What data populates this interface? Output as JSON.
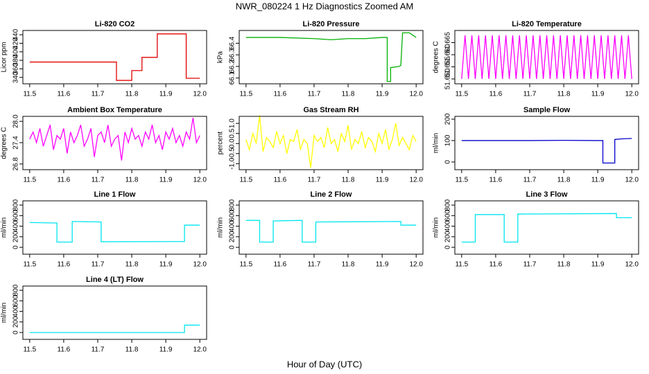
{
  "title": "NWR_080224  1 Hz Diagnostics Zoomed AM",
  "xlabel": "Hour of Day (UTC)",
  "chart_data": [
    {
      "type": "line",
      "title": "Li-820 CO2",
      "ylabel": "Licor ppm",
      "color": "#e00000",
      "x": [
        11.5,
        11.755,
        11.755,
        11.8,
        11.8,
        11.83,
        11.83,
        11.875,
        11.875,
        11.96,
        11.96,
        12.0
      ],
      "values": [
        376,
        376,
        333,
        333,
        356,
        356,
        387,
        387,
        442,
        442,
        338,
        338
      ],
      "xlim": [
        11.48,
        12.02
      ],
      "xticks": [
        11.5,
        11.6,
        11.7,
        11.8,
        11.9,
        {
          "value": 12,
          "label": "12.0"
        }
      ],
      "ylim": [
        325,
        450
      ],
      "yticks": [
        340,
        360,
        380,
        400,
        420,
        440
      ]
    },
    {
      "type": "line",
      "title": "Li-820 Pressure",
      "ylabel": "kPa",
      "color": "#00b000",
      "x": [
        11.5,
        11.6,
        11.7,
        11.75,
        11.8,
        11.85,
        11.9,
        11.915,
        11.915,
        11.925,
        11.925,
        11.95,
        11.955,
        11.96,
        11.98,
        12.0
      ],
      "values": [
        66.45,
        66.45,
        66.44,
        66.43,
        66.44,
        66.44,
        66.45,
        66.45,
        66.07,
        66.07,
        66.19,
        66.2,
        66.21,
        66.49,
        66.49,
        66.45
      ],
      "xlim": [
        11.48,
        12.02
      ],
      "xticks": [
        11.5,
        11.6,
        11.7,
        11.8,
        11.9,
        {
          "value": 12,
          "label": "12.0"
        }
      ],
      "ylim": [
        66.05,
        66.51
      ],
      "yticks": [
        66.1,
        66.2,
        66.3,
        66.4
      ]
    },
    {
      "type": "line",
      "title": "Li-820 Temperature",
      "ylabel": "degrees C",
      "color": "#ff00ff",
      "x": [
        11.5,
        11.51,
        11.52,
        11.53,
        11.54,
        11.55,
        11.56,
        11.57,
        11.58,
        11.59,
        11.6,
        11.61,
        11.62,
        11.63,
        11.64,
        11.65,
        11.66,
        11.67,
        11.68,
        11.69,
        11.7,
        11.71,
        11.72,
        11.73,
        11.74,
        11.75,
        11.76,
        11.77,
        11.78,
        11.79,
        11.8,
        11.81,
        11.82,
        11.83,
        11.84,
        11.85,
        11.86,
        11.87,
        11.88,
        11.89,
        11.9,
        11.91,
        11.92,
        11.93,
        11.94,
        11.95,
        11.96,
        11.97,
        11.98,
        11.99,
        12.0
      ],
      "values": [
        51.65,
        51.668,
        51.65,
        51.668,
        51.65,
        51.668,
        51.65,
        51.668,
        51.65,
        51.668,
        51.65,
        51.668,
        51.65,
        51.668,
        51.65,
        51.668,
        51.65,
        51.668,
        51.65,
        51.668,
        51.65,
        51.668,
        51.65,
        51.668,
        51.65,
        51.668,
        51.65,
        51.668,
        51.65,
        51.668,
        51.65,
        51.668,
        51.65,
        51.668,
        51.65,
        51.668,
        51.65,
        51.668,
        51.65,
        51.668,
        51.65,
        51.668,
        51.65,
        51.668,
        51.65,
        51.668,
        51.65,
        51.668,
        51.65,
        51.668,
        51.65
      ],
      "xlim": [
        11.48,
        12.02
      ],
      "xticks": [
        11.5,
        11.6,
        11.7,
        11.8,
        11.9,
        {
          "value": 12,
          "label": "12.0"
        }
      ],
      "ylim": [
        51.648,
        51.67
      ],
      "yticks": [
        {
          "value": 51.65,
          "label": "51.650"
        },
        {
          "value": 51.655,
          "label": "51.655"
        },
        {
          "value": 51.66,
          "label": "51.660"
        },
        {
          "value": 51.665,
          "label": "51.665"
        }
      ]
    },
    {
      "type": "line",
      "title": "Ambient Box Temperature",
      "ylabel": "degrees C",
      "color": "#ff00ff",
      "x": [
        11.5,
        11.51,
        11.52,
        11.53,
        11.54,
        11.55,
        11.56,
        11.57,
        11.58,
        11.59,
        11.6,
        11.61,
        11.62,
        11.63,
        11.64,
        11.65,
        11.66,
        11.67,
        11.68,
        11.69,
        11.7,
        11.71,
        11.72,
        11.73,
        11.74,
        11.75,
        11.76,
        11.77,
        11.78,
        11.79,
        11.8,
        11.81,
        11.82,
        11.83,
        11.84,
        11.85,
        11.86,
        11.87,
        11.88,
        11.89,
        11.9,
        11.91,
        11.92,
        11.93,
        11.94,
        11.95,
        11.96,
        11.97,
        11.98,
        11.99,
        12.0
      ],
      "values": [
        27.5,
        27.7,
        27.4,
        27.8,
        27.3,
        27.6,
        27.9,
        27.2,
        27.6,
        27.5,
        27.8,
        27.1,
        27.7,
        27.4,
        27.6,
        27.9,
        27.3,
        27.5,
        27.8,
        27.0,
        27.6,
        27.7,
        27.4,
        27.9,
        27.3,
        27.5,
        27.6,
        26.9,
        27.7,
        27.4,
        27.8,
        27.5,
        27.6,
        27.3,
        27.7,
        27.5,
        27.9,
        27.4,
        27.6,
        27.2,
        27.7,
        27.5,
        27.8,
        27.4,
        27.6,
        27.3,
        27.7,
        27.5,
        28.1,
        27.4,
        27.6
      ],
      "xlim": [
        11.48,
        12.02
      ],
      "xticks": [
        11.5,
        11.6,
        11.7,
        11.8,
        11.9,
        {
          "value": 12,
          "label": "12.0"
        }
      ],
      "ylim": [
        26.64,
        28.14
      ],
      "yticks": [
        26.8,
        27.4,
        {
          "value": 28,
          "label": "28.0"
        }
      ]
    },
    {
      "type": "line",
      "title": "Gas Stream RH",
      "ylabel": "percent",
      "color": "#ffff00",
      "x": [
        11.5,
        11.51,
        11.52,
        11.53,
        11.54,
        11.55,
        11.56,
        11.57,
        11.58,
        11.59,
        11.6,
        11.61,
        11.62,
        11.63,
        11.64,
        11.65,
        11.66,
        11.67,
        11.68,
        11.69,
        11.7,
        11.71,
        11.72,
        11.73,
        11.74,
        11.75,
        11.76,
        11.77,
        11.78,
        11.79,
        11.8,
        11.81,
        11.82,
        11.83,
        11.84,
        11.85,
        11.86,
        11.87,
        11.88,
        11.89,
        11.9,
        11.91,
        11.92,
        11.93,
        11.94,
        11.95,
        11.96,
        11.97,
        11.98,
        11.99,
        12.0
      ],
      "values": [
        0.2,
        -0.3,
        0.5,
        0.0,
        1.4,
        -0.4,
        0.3,
        0.1,
        -0.2,
        0.6,
        0.0,
        0.4,
        -0.5,
        0.2,
        0.1,
        0.7,
        -0.3,
        0.2,
        0.0,
        -1.2,
        0.4,
        0.1,
        0.3,
        -0.2,
        0.8,
        0.0,
        0.2,
        -0.4,
        0.5,
        0.1,
        0.9,
        -0.3,
        0.2,
        0.0,
        0.6,
        -0.2,
        0.3,
        0.1,
        -0.4,
        0.5,
        0.0,
        0.7,
        -0.3,
        0.2,
        1.0,
        -0.1,
        0.3,
        0.0,
        -0.3,
        0.4,
        0.1
      ],
      "xlim": [
        11.48,
        12.02
      ],
      "xticks": [
        11.5,
        11.6,
        11.7,
        11.8,
        11.9,
        {
          "value": 12,
          "label": "12.0"
        }
      ],
      "ylim": [
        -1.3,
        1.35
      ],
      "yticks": [
        {
          "value": -1,
          "label": "-1.0"
        },
        -0.5,
        {
          "value": 0,
          "label": "0.0"
        },
        0.5,
        {
          "value": 1,
          "label": "1.0"
        }
      ]
    },
    {
      "type": "line",
      "title": "Sample Flow",
      "ylabel": "ml/min",
      "color": "#0000c8",
      "x": [
        11.5,
        11.6,
        11.7,
        11.8,
        11.9,
        11.915,
        11.915,
        11.95,
        11.95,
        11.97,
        12.0
      ],
      "values": [
        100,
        100,
        100,
        101,
        100,
        100,
        -5,
        -5,
        105,
        108,
        110
      ],
      "xlim": [
        11.48,
        12.02
      ],
      "xticks": [
        11.5,
        11.6,
        11.7,
        11.8,
        11.9,
        {
          "value": 12,
          "label": "12.0"
        }
      ],
      "ylim": [
        -36,
        213
      ],
      "yticks": [
        0,
        100,
        200
      ]
    },
    {
      "type": "line",
      "title": "Line 1 Flow",
      "ylabel": "ml/min",
      "color": "#00e5ee",
      "x": [
        11.5,
        11.58,
        11.58,
        11.625,
        11.625,
        11.71,
        11.71,
        11.955,
        11.955,
        12.0
      ],
      "values": [
        470,
        460,
        100,
        100,
        490,
        480,
        105,
        110,
        420,
        420
      ],
      "xlim": [
        11.48,
        12.02
      ],
      "xticks": [
        11.5,
        11.6,
        11.7,
        11.8,
        11.9,
        {
          "value": 12,
          "label": "12.0"
        }
      ],
      "ylim": [
        -130,
        880
      ],
      "yticks": [
        0,
        200,
        400,
        600,
        800
      ]
    },
    {
      "type": "line",
      "title": "Line 2 Flow",
      "ylabel": "ml/min",
      "color": "#00e5ee",
      "x": [
        11.5,
        11.54,
        11.54,
        11.58,
        11.58,
        11.665,
        11.665,
        11.705,
        11.705,
        11.955,
        11.955,
        12.0
      ],
      "values": [
        510,
        510,
        100,
        100,
        500,
        510,
        100,
        100,
        480,
        490,
        420,
        420
      ],
      "xlim": [
        11.48,
        12.02
      ],
      "xticks": [
        11.5,
        11.6,
        11.7,
        11.8,
        11.9,
        {
          "value": 12,
          "label": "12.0"
        }
      ],
      "ylim": [
        -130,
        880
      ],
      "yticks": [
        0,
        200,
        400,
        600,
        800
      ]
    },
    {
      "type": "line",
      "title": "Line 3 Flow",
      "ylabel": "ml/min",
      "color": "#00e5ee",
      "x": [
        11.5,
        11.54,
        11.54,
        11.625,
        11.625,
        11.665,
        11.665,
        11.955,
        11.955,
        12.0
      ],
      "values": [
        100,
        100,
        620,
        620,
        100,
        100,
        630,
        640,
        560,
        560
      ],
      "xlim": [
        11.48,
        12.02
      ],
      "xticks": [
        11.5,
        11.6,
        11.7,
        11.8,
        11.9,
        {
          "value": 12,
          "label": "12.0"
        }
      ],
      "ylim": [
        -130,
        880
      ],
      "yticks": [
        0,
        200,
        400,
        600,
        800
      ]
    },
    {
      "type": "line",
      "title": "Line 4 (LT) Flow",
      "ylabel": "ml/min",
      "color": "#00e5ee",
      "x": [
        11.5,
        11.955,
        11.955,
        12.0
      ],
      "values": [
        0,
        0,
        140,
        140
      ],
      "xlim": [
        11.48,
        12.02
      ],
      "xticks": [
        11.5,
        11.6,
        11.7,
        11.8,
        11.9,
        {
          "value": 12,
          "label": "12.0"
        }
      ],
      "ylim": [
        -130,
        880
      ],
      "yticks": [
        0,
        200,
        400,
        600,
        800
      ]
    }
  ]
}
